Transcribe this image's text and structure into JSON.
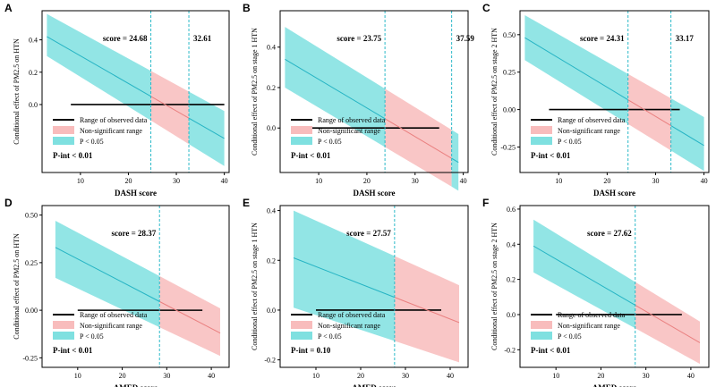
{
  "colors": {
    "sig_fill": "#7fe0e0",
    "nonsig_fill": "#f8bcbc",
    "sig_line": "#26b4c4",
    "nonsig_line": "#ea8080",
    "vline": "#2bb9c8",
    "data_range": "#000000"
  },
  "legend": {
    "range": "Range of observed data",
    "nonsig": "Non-significant range",
    "sig": "P < 0.05"
  },
  "chart_data": [
    {
      "panel": "A",
      "type": "line",
      "xlabel": "DASH score",
      "ylabel": "Conditional effect of PM2.5 on HTN",
      "xlim": [
        2,
        41
      ],
      "ylim": [
        -0.42,
        0.58
      ],
      "xticks": [
        10,
        20,
        30,
        40
      ],
      "xtick_labels": [
        "10",
        "20",
        "30",
        "40"
      ],
      "yticks": [
        0.0,
        0.2,
        0.4
      ],
      "ytick_labels": [
        "0.0",
        "0.2",
        "0.4"
      ],
      "x_range": [
        3,
        40
      ],
      "line": [
        0.42,
        -0.21
      ],
      "lower": [
        0.3,
        -0.38
      ],
      "upper": [
        0.56,
        -0.04
      ],
      "observed_range": [
        8,
        40
      ],
      "cutoffs": [
        24.68,
        32.61
      ],
      "score_label": "score = 24.68",
      "extra_label": "32.61",
      "pint": "P-int < 0.01"
    },
    {
      "panel": "B",
      "type": "line",
      "xlabel": "DASH score",
      "ylabel": "Conditional effect of PM2.5 on stage 1 HTN",
      "xlim": [
        2,
        41
      ],
      "ylim": [
        -0.22,
        0.58
      ],
      "xticks": [
        10,
        20,
        30,
        40
      ],
      "xtick_labels": [
        "10",
        "20",
        "30",
        "40"
      ],
      "yticks": [
        0.0,
        0.2,
        0.4
      ],
      "ytick_labels": [
        "0.0",
        "0.2",
        "0.4"
      ],
      "x_range": [
        3,
        39
      ],
      "line": [
        0.34,
        -0.17
      ],
      "lower": [
        0.2,
        -0.31
      ],
      "upper": [
        0.5,
        -0.03
      ],
      "observed_range": [
        8,
        35
      ],
      "cutoffs": [
        23.75,
        37.59
      ],
      "score_label": "score = 23.75",
      "extra_label": "37.59",
      "pint": "P-int < 0.01"
    },
    {
      "panel": "C",
      "type": "line",
      "xlabel": "DASH score",
      "ylabel": "Conditional effect of PM2.5 on stage 2 HTN",
      "xlim": [
        2,
        41
      ],
      "ylim": [
        -0.42,
        0.66
      ],
      "xticks": [
        10,
        20,
        30,
        40
      ],
      "xtick_labels": [
        "10",
        "20",
        "30",
        "40"
      ],
      "yticks": [
        -0.25,
        0.0,
        0.25,
        0.5
      ],
      "ytick_labels": [
        "-0.25",
        "0.00",
        "0.25",
        "0.50"
      ],
      "x_range": [
        3,
        40
      ],
      "line": [
        0.48,
        -0.24
      ],
      "lower": [
        0.33,
        -0.41
      ],
      "upper": [
        0.63,
        -0.05
      ],
      "observed_range": [
        8,
        35
      ],
      "cutoffs": [
        24.31,
        33.17
      ],
      "score_label": "score = 24.31",
      "extra_label": "33.17",
      "pint": "P-int < 0.01"
    },
    {
      "panel": "D",
      "type": "line",
      "xlabel": "AMED score",
      "ylabel": "Conditional effect of PM2.5 on HTN",
      "xlim": [
        2,
        44
      ],
      "ylim": [
        -0.3,
        0.55
      ],
      "xticks": [
        10,
        20,
        30,
        40
      ],
      "xtick_labels": [
        "10",
        "20",
        "30",
        "40"
      ],
      "yticks": [
        -0.25,
        0.0,
        0.25,
        0.5
      ],
      "ytick_labels": [
        "-0.25",
        "0.00",
        "0.25",
        "0.50"
      ],
      "x_range": [
        5,
        42
      ],
      "line": [
        0.33,
        -0.12
      ],
      "lower": [
        0.17,
        -0.24
      ],
      "upper": [
        0.47,
        0.01
      ],
      "observed_range": [
        10,
        38
      ],
      "cutoffs": [
        28.37
      ],
      "score_label": "score = 28.37",
      "extra_label": "",
      "pint": "P-int < 0.01"
    },
    {
      "panel": "E",
      "type": "line",
      "xlabel": "AMED score",
      "ylabel": "Conditional effect of PM2.5 on stage 1 HTN",
      "xlim": [
        2,
        44
      ],
      "ylim": [
        -0.23,
        0.42
      ],
      "xticks": [
        10,
        20,
        30,
        40
      ],
      "xtick_labels": [
        "10",
        "20",
        "30",
        "40"
      ],
      "yticks": [
        -0.2,
        0.0,
        0.2,
        0.4
      ],
      "ytick_labels": [
        "-0.2",
        "0.0",
        "0.2",
        "0.4"
      ],
      "x_range": [
        5,
        42
      ],
      "line": [
        0.21,
        -0.05
      ],
      "lower": [
        0.01,
        -0.21
      ],
      "upper": [
        0.4,
        0.1
      ],
      "observed_range": [
        10,
        38
      ],
      "cutoffs": [
        27.57
      ],
      "score_label": "score = 27.57",
      "extra_label": "",
      "pint": "P-int = 0.10"
    },
    {
      "panel": "F",
      "type": "line",
      "xlabel": "AMED score",
      "ylabel": "Conditional effect of PM2.5 on stage 2 HTN",
      "xlim": [
        2,
        44
      ],
      "ylim": [
        -0.3,
        0.62
      ],
      "xticks": [
        10,
        20,
        30,
        40
      ],
      "xtick_labels": [
        "10",
        "20",
        "30",
        "40"
      ],
      "yticks": [
        -0.2,
        0.0,
        0.2,
        0.4,
        0.6
      ],
      "ytick_labels": [
        "-0.2",
        "0.0",
        "0.2",
        "0.4",
        "0.6"
      ],
      "x_range": [
        5,
        42
      ],
      "line": [
        0.39,
        -0.16
      ],
      "lower": [
        0.24,
        -0.28
      ],
      "upper": [
        0.54,
        -0.04
      ],
      "observed_range": [
        10,
        38
      ],
      "cutoffs": [
        27.62
      ],
      "score_label": "score = 27.62",
      "extra_label": "",
      "pint": "P-int < 0.01"
    }
  ]
}
